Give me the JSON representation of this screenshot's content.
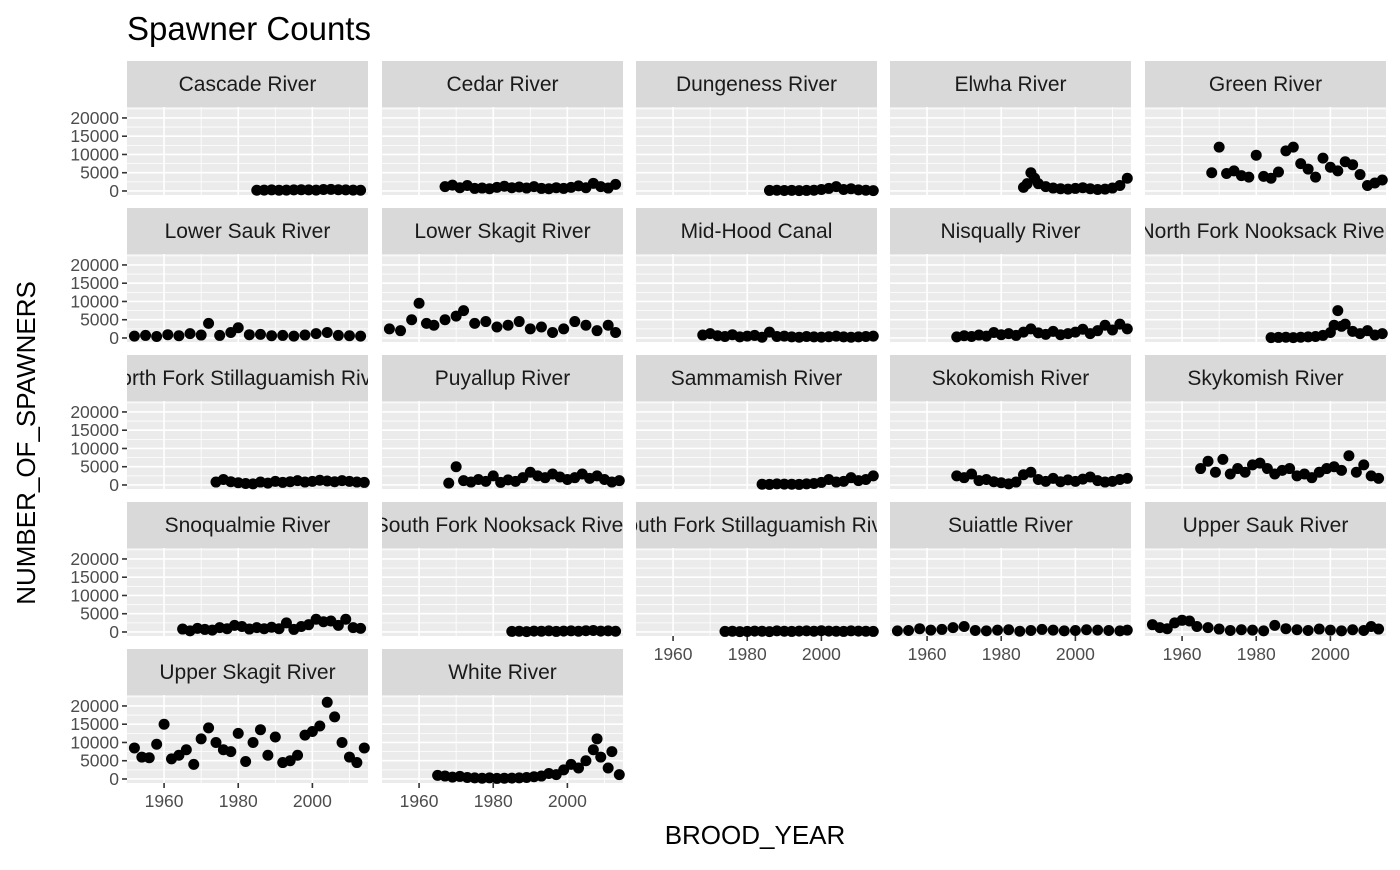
{
  "chart_data": {
    "type": "scatter",
    "faceted": true,
    "title": "Spawner Counts",
    "xlabel": "BROOD_YEAR",
    "ylabel": "NUMBER_OF_SPAWNERS",
    "xlim": [
      1950,
      2015
    ],
    "ylim": [
      -1100,
      23000
    ],
    "x_ticks": [
      1960,
      1980,
      2000
    ],
    "x_tick_labels": [
      "1960",
      "1980",
      "2000"
    ],
    "y_ticks": [
      0,
      5000,
      10000,
      15000,
      20000
    ],
    "y_tick_labels": [
      "0",
      "5000",
      "10000",
      "15000",
      "20000"
    ],
    "grid": true,
    "panels": [
      {
        "name": "Cascade River",
        "x": [
          1985,
          1987,
          1989,
          1991,
          1993,
          1995,
          1997,
          1999,
          2001,
          2003,
          2005,
          2007,
          2009,
          2011,
          2013
        ],
        "y": [
          200,
          250,
          300,
          200,
          250,
          300,
          350,
          300,
          250,
          400,
          450,
          350,
          300,
          250,
          200
        ]
      },
      {
        "name": "Cedar River",
        "x": [
          1967,
          1969,
          1971,
          1973,
          1975,
          1977,
          1979,
          1981,
          1983,
          1985,
          1987,
          1989,
          1991,
          1993,
          1995,
          1997,
          1999,
          2001,
          2003,
          2005,
          2007,
          2009,
          2011,
          2013
        ],
        "y": [
          1200,
          1600,
          900,
          1500,
          700,
          800,
          600,
          1000,
          1300,
          900,
          1100,
          800,
          1200,
          700,
          600,
          900,
          700,
          1000,
          1400,
          900,
          2100,
          1200,
          800,
          1800
        ]
      },
      {
        "name": "Dungeness River",
        "x": [
          1986,
          1988,
          1990,
          1992,
          1994,
          1996,
          1998,
          2000,
          2002,
          2004,
          2006,
          2008,
          2010,
          2012,
          2014
        ],
        "y": [
          150,
          200,
          120,
          180,
          100,
          150,
          200,
          400,
          700,
          1200,
          400,
          600,
          300,
          200,
          100
        ]
      },
      {
        "name": "Elwha River",
        "x": [
          1986,
          1987,
          1988,
          1989,
          1990,
          1992,
          1994,
          1996,
          1998,
          2000,
          2002,
          2004,
          2006,
          2008,
          2010,
          2012,
          2014
        ],
        "y": [
          1000,
          2000,
          5000,
          3500,
          2000,
          1200,
          800,
          600,
          500,
          700,
          900,
          600,
          400,
          500,
          800,
          1500,
          3500
        ]
      },
      {
        "name": "Green River",
        "x": [
          1968,
          1970,
          1972,
          1974,
          1976,
          1978,
          1980,
          1982,
          1984,
          1986,
          1988,
          1990,
          1992,
          1994,
          1996,
          1998,
          2000,
          2002,
          2004,
          2006,
          2008,
          2010,
          2012,
          2014
        ],
        "y": [
          5000,
          12000,
          4800,
          5500,
          4200,
          3800,
          9800,
          4000,
          3500,
          5200,
          11000,
          12000,
          7500,
          6000,
          3800,
          9000,
          6500,
          5500,
          8000,
          7200,
          4500,
          1500,
          2200,
          3000
        ]
      },
      {
        "name": "Lower Sauk River",
        "x": [
          1952,
          1955,
          1958,
          1961,
          1964,
          1967,
          1970,
          1972,
          1975,
          1978,
          1980,
          1983,
          1986,
          1989,
          1992,
          1995,
          1998,
          2001,
          2004,
          2007,
          2010,
          2013
        ],
        "y": [
          500,
          700,
          400,
          900,
          600,
          1200,
          800,
          4000,
          700,
          1500,
          2800,
          900,
          1000,
          600,
          700,
          500,
          800,
          1200,
          1500,
          700,
          600,
          500
        ]
      },
      {
        "name": "Lower Skagit River",
        "x": [
          1952,
          1955,
          1958,
          1960,
          1962,
          1964,
          1967,
          1970,
          1972,
          1975,
          1978,
          1981,
          1984,
          1987,
          1990,
          1993,
          1996,
          1999,
          2002,
          2005,
          2008,
          2011,
          2013
        ],
        "y": [
          2500,
          2000,
          5000,
          9500,
          4000,
          3500,
          5000,
          6000,
          7500,
          4000,
          4500,
          3000,
          3500,
          4500,
          2500,
          3000,
          1500,
          2500,
          4500,
          3500,
          2000,
          3500,
          1500
        ]
      },
      {
        "name": "Mid-Hood Canal",
        "x": [
          1968,
          1970,
          1972,
          1974,
          1976,
          1978,
          1980,
          1982,
          1984,
          1986,
          1988,
          1990,
          1992,
          1994,
          1996,
          1998,
          2000,
          2002,
          2004,
          2006,
          2008,
          2010,
          2012,
          2014
        ],
        "y": [
          800,
          1200,
          600,
          400,
          900,
          300,
          500,
          700,
          200,
          1600,
          400,
          500,
          300,
          200,
          400,
          300,
          250,
          350,
          500,
          300,
          200,
          300,
          400,
          500
        ]
      },
      {
        "name": "Nisqually River",
        "x": [
          1968,
          1970,
          1972,
          1974,
          1976,
          1978,
          1980,
          1982,
          1984,
          1986,
          1988,
          1990,
          1992,
          1994,
          1996,
          1998,
          2000,
          2002,
          2004,
          2006,
          2008,
          2010,
          2012,
          2014
        ],
        "y": [
          300,
          600,
          400,
          800,
          500,
          1500,
          900,
          1200,
          700,
          1600,
          2500,
          1400,
          1000,
          1800,
          900,
          1200,
          1600,
          2400,
          1200,
          2000,
          3500,
          2200,
          3800,
          2500
        ]
      },
      {
        "name": "North Fork Nooksack River",
        "x": [
          1984,
          1986,
          1988,
          1990,
          1992,
          1994,
          1996,
          1998,
          2000,
          2001,
          2002,
          2003,
          2004,
          2006,
          2008,
          2010,
          2012,
          2014
        ],
        "y": [
          100,
          150,
          200,
          100,
          200,
          300,
          400,
          700,
          1500,
          3500,
          7500,
          3200,
          3800,
          1800,
          1200,
          2000,
          800,
          1200
        ]
      },
      {
        "name": "North Fork Stillaguamish River",
        "x": [
          1974,
          1976,
          1978,
          1980,
          1982,
          1984,
          1986,
          1988,
          1990,
          1992,
          1994,
          1996,
          1998,
          2000,
          2002,
          2004,
          2006,
          2008,
          2010,
          2012,
          2014
        ],
        "y": [
          800,
          1500,
          900,
          600,
          400,
          300,
          800,
          500,
          1000,
          700,
          900,
          1200,
          800,
          1000,
          1300,
          1100,
          900,
          1200,
          1000,
          800,
          700
        ]
      },
      {
        "name": "Puyallup River",
        "x": [
          1968,
          1970,
          1972,
          1974,
          1976,
          1978,
          1980,
          1982,
          1984,
          1986,
          1988,
          1990,
          1992,
          1994,
          1996,
          1998,
          2000,
          2002,
          2004,
          2006,
          2008,
          2010,
          2012,
          2014
        ],
        "y": [
          500,
          5000,
          1200,
          800,
          1500,
          1000,
          2500,
          700,
          1400,
          1000,
          2000,
          3500,
          2500,
          2000,
          3000,
          2200,
          1500,
          2000,
          3000,
          1800,
          2500,
          1500,
          800,
          1200
        ]
      },
      {
        "name": "Sammamish River",
        "x": [
          1984,
          1986,
          1988,
          1990,
          1992,
          1994,
          1996,
          1998,
          2000,
          2002,
          2004,
          2006,
          2008,
          2010,
          2012,
          2014
        ],
        "y": [
          200,
          150,
          300,
          250,
          200,
          150,
          300,
          400,
          700,
          1500,
          800,
          1000,
          2000,
          1200,
          1500,
          2500
        ]
      },
      {
        "name": "Skokomish River",
        "x": [
          1968,
          1970,
          1972,
          1974,
          1976,
          1978,
          1980,
          1982,
          1984,
          1986,
          1988,
          1990,
          1992,
          1994,
          1996,
          1998,
          2000,
          2002,
          2004,
          2006,
          2008,
          2010,
          2012,
          2014
        ],
        "y": [
          2500,
          2000,
          3000,
          1200,
          1500,
          900,
          600,
          300,
          800,
          2800,
          3500,
          1500,
          1000,
          1800,
          900,
          1400,
          1000,
          1600,
          2200,
          1200,
          800,
          1000,
          1500,
          1800
        ]
      },
      {
        "name": "Skykomish River",
        "x": [
          1965,
          1967,
          1969,
          1971,
          1973,
          1975,
          1977,
          1979,
          1981,
          1983,
          1985,
          1987,
          1989,
          1991,
          1993,
          1995,
          1997,
          1999,
          2001,
          2003,
          2005,
          2007,
          2009,
          2011,
          2013
        ],
        "y": [
          4500,
          6500,
          3500,
          7000,
          3000,
          4500,
          3500,
          5500,
          6000,
          4500,
          3000,
          4000,
          4500,
          2500,
          3000,
          2000,
          3500,
          4500,
          5000,
          4000,
          8000,
          3500,
          5500,
          2500,
          1800
        ]
      },
      {
        "name": "Snoqualmie River",
        "x": [
          1965,
          1967,
          1969,
          1971,
          1973,
          1975,
          1977,
          1979,
          1981,
          1983,
          1985,
          1987,
          1989,
          1991,
          1993,
          1995,
          1997,
          1999,
          2001,
          2003,
          2005,
          2007,
          2009,
          2011,
          2013
        ],
        "y": [
          800,
          300,
          1000,
          700,
          500,
          1200,
          900,
          1800,
          1500,
          800,
          1200,
          900,
          1300,
          900,
          2500,
          700,
          1500,
          2000,
          3500,
          2800,
          3000,
          1800,
          3500,
          1200,
          1000
        ]
      },
      {
        "name": "South Fork Nooksack River",
        "x": [
          1985,
          1987,
          1989,
          1991,
          1993,
          1995,
          1997,
          1999,
          2001,
          2003,
          2005,
          2007,
          2009,
          2011,
          2013
        ],
        "y": [
          150,
          200,
          100,
          250,
          200,
          300,
          150,
          250,
          300,
          200,
          350,
          400,
          250,
          300,
          200
        ]
      },
      {
        "name": "South Fork Stillaguamish River",
        "x": [
          1974,
          1976,
          1978,
          1980,
          1982,
          1984,
          1986,
          1988,
          1990,
          1992,
          1994,
          1996,
          1998,
          2000,
          2002,
          2004,
          2006,
          2008,
          2010,
          2012,
          2014
        ],
        "y": [
          150,
          200,
          100,
          150,
          250,
          200,
          100,
          300,
          200,
          150,
          250,
          300,
          200,
          350,
          250,
          200,
          150,
          300,
          250,
          200,
          150
        ]
      },
      {
        "name": "Suiattle River",
        "x": [
          1952,
          1955,
          1958,
          1961,
          1964,
          1967,
          1970,
          1973,
          1976,
          1979,
          1982,
          1985,
          1988,
          1991,
          1994,
          1997,
          2000,
          2003,
          2006,
          2009,
          2012,
          2014
        ],
        "y": [
          300,
          400,
          900,
          500,
          700,
          1200,
          1500,
          400,
          300,
          500,
          600,
          200,
          400,
          700,
          500,
          300,
          400,
          600,
          500,
          400,
          300,
          500
        ]
      },
      {
        "name": "Upper Sauk River",
        "x": [
          1952,
          1954,
          1956,
          1958,
          1960,
          1962,
          1964,
          1967,
          1970,
          1973,
          1976,
          1979,
          1982,
          1985,
          1988,
          1991,
          1994,
          1997,
          2000,
          2003,
          2006,
          2009,
          2011,
          2013
        ],
        "y": [
          2000,
          1200,
          900,
          2500,
          3200,
          3000,
          1500,
          1200,
          800,
          400,
          600,
          500,
          300,
          1800,
          900,
          600,
          400,
          800,
          500,
          300,
          600,
          400,
          1500,
          800
        ]
      },
      {
        "name": "Upper Skagit River",
        "x": [
          1952,
          1954,
          1956,
          1958,
          1960,
          1962,
          1964,
          1966,
          1968,
          1970,
          1972,
          1974,
          1976,
          1978,
          1980,
          1982,
          1984,
          1986,
          1988,
          1990,
          1992,
          1994,
          1996,
          1998,
          2000,
          2002,
          2004,
          2006,
          2008,
          2010,
          2012,
          2014
        ],
        "y": [
          8500,
          6000,
          5800,
          9500,
          15000,
          5500,
          6500,
          8000,
          4000,
          11000,
          14000,
          10000,
          8000,
          7500,
          12500,
          4800,
          10000,
          13500,
          6500,
          11500,
          4500,
          5000,
          6500,
          12000,
          13000,
          14500,
          21000,
          17000,
          10000,
          6000,
          4500,
          8500
        ]
      },
      {
        "name": "White River",
        "x": [
          1965,
          1967,
          1969,
          1971,
          1973,
          1975,
          1977,
          1979,
          1981,
          1983,
          1985,
          1987,
          1989,
          1991,
          1993,
          1995,
          1997,
          1999,
          2001,
          2003,
          2005,
          2007,
          2008,
          2009,
          2011,
          2012,
          2014
        ],
        "y": [
          1000,
          800,
          500,
          700,
          400,
          300,
          200,
          300,
          150,
          200,
          250,
          300,
          400,
          600,
          800,
          1500,
          1200,
          2500,
          4000,
          3000,
          5000,
          8000,
          11000,
          6000,
          3000,
          7500,
          1200
        ]
      }
    ]
  }
}
